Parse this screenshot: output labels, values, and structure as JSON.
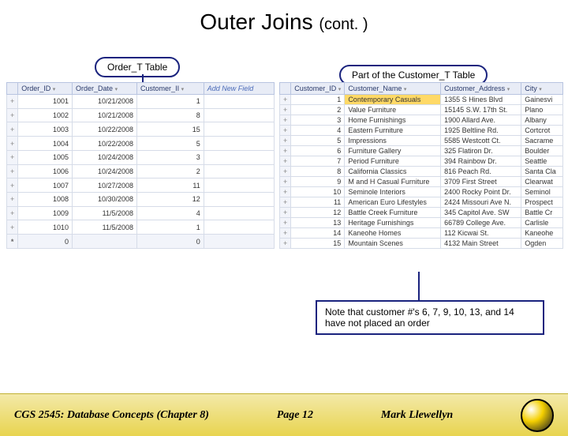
{
  "title_main": "Outer Joins ",
  "title_sub": "(cont. )",
  "labels": {
    "order": "Order_T Table",
    "customer": "Part of the Customer_T Table"
  },
  "order_table": {
    "headers": [
      "",
      "Order_ID",
      "Order_Date",
      "Customer_II",
      "Add New Field"
    ],
    "rows": [
      [
        "+",
        "1001",
        "10/21/2008",
        "1",
        ""
      ],
      [
        "+",
        "1002",
        "10/21/2008",
        "8",
        ""
      ],
      [
        "+",
        "1003",
        "10/22/2008",
        "15",
        ""
      ],
      [
        "+",
        "1004",
        "10/22/2008",
        "5",
        ""
      ],
      [
        "+",
        "1005",
        "10/24/2008",
        "3",
        ""
      ],
      [
        "+",
        "1006",
        "10/24/2008",
        "2",
        ""
      ],
      [
        "+",
        "1007",
        "10/27/2008",
        "11",
        ""
      ],
      [
        "+",
        "1008",
        "10/30/2008",
        "12",
        ""
      ],
      [
        "+",
        "1009",
        "11/5/2008",
        "4",
        ""
      ],
      [
        "+",
        "1010",
        "11/5/2008",
        "1",
        ""
      ]
    ],
    "star_row": [
      "*",
      "0",
      "",
      "0",
      ""
    ]
  },
  "customer_table": {
    "headers": [
      "",
      "Customer_ID",
      "Customer_Name",
      "Customer_Address",
      "City"
    ],
    "rows": [
      [
        "+",
        "1",
        "Contemporary Casuals",
        "1355 S Hines Blvd",
        "Gainesvi"
      ],
      [
        "+",
        "2",
        "Value Furniture",
        "15145 S.W. 17th St.",
        "Plano"
      ],
      [
        "+",
        "3",
        "Home Furnishings",
        "1900 Allard Ave.",
        "Albany"
      ],
      [
        "+",
        "4",
        "Eastern Furniture",
        "1925 Beltline Rd.",
        "Cortcrot"
      ],
      [
        "+",
        "5",
        "Impressions",
        "5585 Westcott Ct.",
        "Sacrame"
      ],
      [
        "+",
        "6",
        "Furniture Gallery",
        "325 Flatiron Dr.",
        "Boulder"
      ],
      [
        "+",
        "7",
        "Period Furniture",
        "394 Rainbow Dr.",
        "Seattle"
      ],
      [
        "+",
        "8",
        "California Classics",
        "816 Peach Rd.",
        "Santa Cla"
      ],
      [
        "+",
        "9",
        "M and H Casual Furniture",
        "3709 First Street",
        "Clearwat"
      ],
      [
        "+",
        "10",
        "Seminole Interiors",
        "2400 Rocky Point Dr.",
        "Seminol"
      ],
      [
        "+",
        "11",
        "American Euro Lifestyles",
        "2424 Missouri Ave N.",
        "Prospect"
      ],
      [
        "+",
        "12",
        "Battle Creek Furniture",
        "345 Capitol Ave. SW",
        "Battle Cr"
      ],
      [
        "+",
        "13",
        "Heritage Furnishings",
        "66789 College Ave.",
        "Carlisle"
      ],
      [
        "+",
        "14",
        "Kaneohe Homes",
        "112 Kicwai St.",
        "Kaneohe"
      ],
      [
        "+",
        "15",
        "Mountain Scenes",
        "4132 Main Street",
        "Ogden"
      ]
    ],
    "highlight_row": 0
  },
  "note": "Note that customer #'s 6, 7, 9, 10, 13, and 14 have not placed an order",
  "footer": {
    "left": "CGS 2545: Database Concepts  (Chapter 8)",
    "center": "Page 12",
    "right": "Mark Llewellyn"
  },
  "colors": {
    "border_navy": "#1a237e",
    "header_bg": "#e8ecf6",
    "footer_grad_top": "#f3e9a8",
    "footer_grad_bot": "#e8d44f",
    "highlight": "#ffd966"
  }
}
